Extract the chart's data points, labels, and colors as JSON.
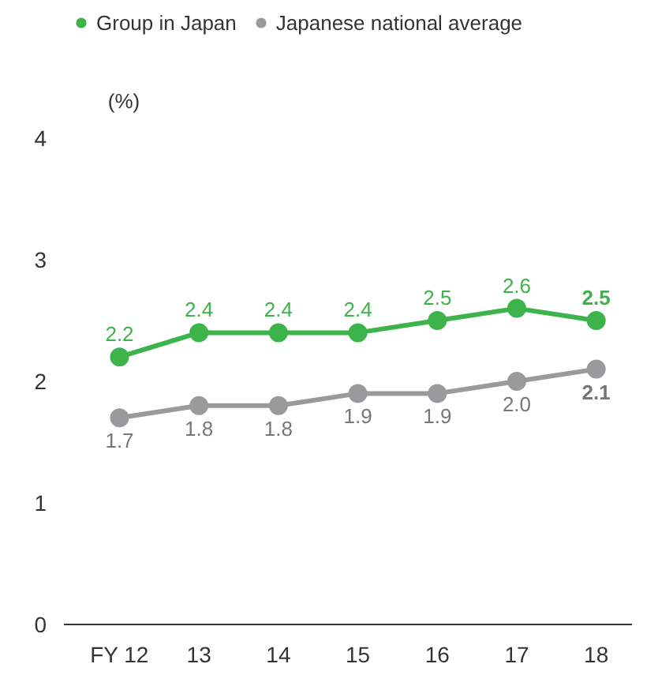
{
  "chart_data": {
    "type": "line",
    "ylabel": "(%)",
    "categories": [
      "FY 12",
      "13",
      "14",
      "15",
      "16",
      "17",
      "18"
    ],
    "series": [
      {
        "name": "Group in Japan",
        "color": "#3cb44b",
        "values": [
          2.2,
          2.4,
          2.4,
          2.4,
          2.5,
          2.6,
          2.5
        ],
        "value_labels": [
          "2.2",
          "2.4",
          "2.4",
          "2.4",
          "2.5",
          "2.6",
          "2.5"
        ]
      },
      {
        "name": "Japanese national average",
        "color": "#9a9a9c",
        "values": [
          1.7,
          1.8,
          1.8,
          1.9,
          1.9,
          2.0,
          2.1
        ],
        "value_labels": [
          "1.7",
          "1.8",
          "1.8",
          "1.9",
          "1.9",
          "2.0",
          "2.1"
        ]
      }
    ],
    "ylim": [
      0,
      4
    ],
    "yticks": [
      0,
      1,
      2,
      3,
      4
    ],
    "legend": "top left",
    "marker": "circle",
    "line_style": "solid"
  }
}
